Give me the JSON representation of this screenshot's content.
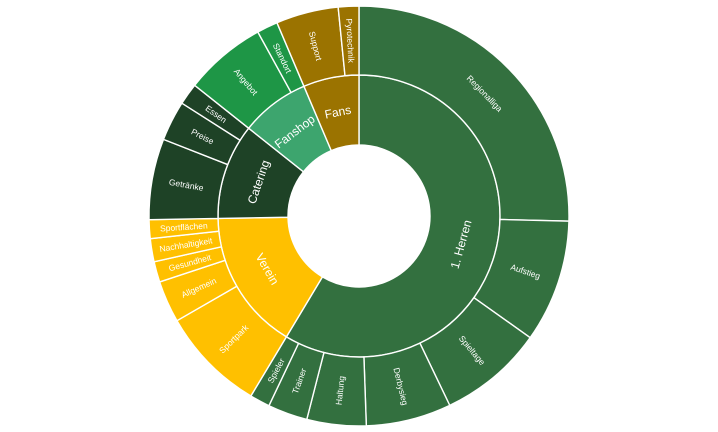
{
  "chart_data": {
    "type": "sunburst",
    "title": "",
    "center": [
      359,
      216
    ],
    "radii": {
      "hole": 71,
      "inner": 141,
      "outer": 210
    },
    "colors": {
      "herren": "#33703F",
      "verein": "#FFC000",
      "catering": "#1E4226",
      "fanshop": "#3DA56E",
      "fanshop_children": "#1E9646",
      "fans": "#9B7300"
    },
    "categories": [
      {
        "name": "1. Herren",
        "start": 0,
        "end": 211,
        "color": "#33703F",
        "children": [
          {
            "name": "Regionalliga",
            "start": 0,
            "end": 91.4
          },
          {
            "name": "Aufstieg",
            "start": 91.4,
            "end": 125.4
          },
          {
            "name": "Spieltage",
            "start": 125.4,
            "end": 154.4
          },
          {
            "name": "Derbysieg",
            "start": 154.4,
            "end": 178
          },
          {
            "name": "Haltung",
            "start": 178,
            "end": 194.4
          },
          {
            "name": "Trainer",
            "start": 194.4,
            "end": 205.4
          },
          {
            "name": "Spieler",
            "start": 205.4,
            "end": 211
          }
        ]
      },
      {
        "name": "Verein",
        "start": 211,
        "end": 269,
        "color": "#FFC000",
        "children": [
          {
            "name": "Sportpark",
            "start": 211,
            "end": 240.1
          },
          {
            "name": "Allgemein",
            "start": 240.1,
            "end": 251.7
          },
          {
            "name": "Gesundheit",
            "start": 251.7,
            "end": 257.4
          },
          {
            "name": "Nachhaltigkeit",
            "start": 257.4,
            "end": 263.8
          },
          {
            "name": "Sportflächen",
            "start": 263.8,
            "end": 269
          }
        ]
      },
      {
        "name": "Catering",
        "start": 269,
        "end": 308.5,
        "color": "#1E4226",
        "children": [
          {
            "name": "Getränke",
            "start": 269,
            "end": 291.4
          },
          {
            "name": "Preise",
            "start": 291.4,
            "end": 302.5
          },
          {
            "name": "Essen",
            "start": 302.5,
            "end": 308.5
          }
        ]
      },
      {
        "name": "Fanshop",
        "start": 308.5,
        "end": 337,
        "color": "#3DA56E",
        "child_color": "#1E9646",
        "children": [
          {
            "name": "Angebot",
            "start": 308.5,
            "end": 331.2
          },
          {
            "name": "Standort",
            "start": 331.2,
            "end": 337
          }
        ]
      },
      {
        "name": "Fans",
        "start": 337,
        "end": 360,
        "color": "#9B7300",
        "children": [
          {
            "name": "Support",
            "start": 337,
            "end": 354.3
          },
          {
            "name": "Pyrotechnik",
            "start": 354.3,
            "end": 360
          }
        ]
      }
    ],
    "angle_unit": "degrees clockwise from 12 o'clock (share of 360)"
  }
}
